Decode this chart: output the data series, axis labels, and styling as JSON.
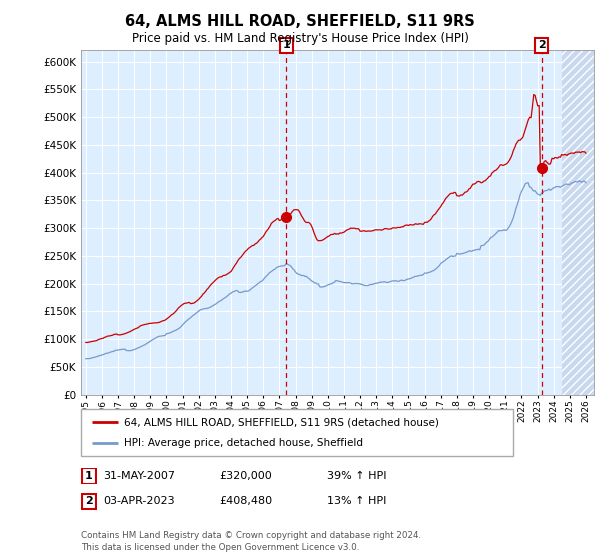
{
  "title": "64, ALMS HILL ROAD, SHEFFIELD, S11 9RS",
  "subtitle": "Price paid vs. HM Land Registry's House Price Index (HPI)",
  "hpi_label": "HPI: Average price, detached house, Sheffield",
  "property_label": "64, ALMS HILL ROAD, SHEFFIELD, S11 9RS (detached house)",
  "annotation1": {
    "num": "1",
    "date": "31-MAY-2007",
    "price": "£320,000",
    "pct": "39% ↑ HPI"
  },
  "annotation2": {
    "num": "2",
    "date": "03-APR-2023",
    "price": "£408,480",
    "pct": "13% ↑ HPI"
  },
  "footer": "Contains HM Land Registry data © Crown copyright and database right 2024.\nThis data is licensed under the Open Government Licence v3.0.",
  "property_color": "#cc0000",
  "hpi_color": "#7799cc",
  "bg_color": "#ddeeff",
  "grid_color": "white",
  "dashed_line_color": "#cc0000",
  "ylim": [
    0,
    620000
  ],
  "yticks": [
    0,
    50000,
    100000,
    150000,
    200000,
    250000,
    300000,
    350000,
    400000,
    450000,
    500000,
    550000,
    600000
  ],
  "xlabel_start_year": 1995,
  "xlabel_end_year": 2026,
  "vline1_year": 2007.42,
  "vline2_year": 2023.25,
  "marker1_x": 2007.42,
  "marker1_y": 320000,
  "marker2_x": 2023.25,
  "marker2_y": 408480,
  "hatch_start": 2024.5,
  "xlim_left": 1994.7,
  "xlim_right": 2026.5
}
